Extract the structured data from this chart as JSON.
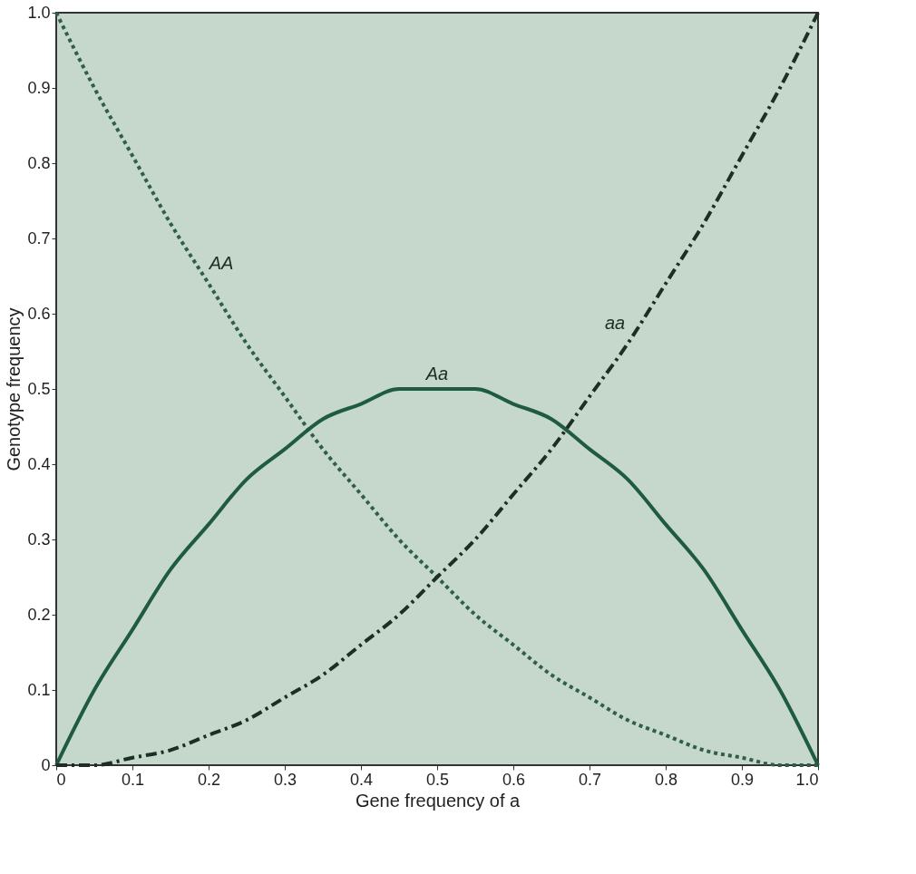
{
  "chart_data": {
    "type": "line",
    "xlabel": "Gene frequency of a",
    "ylabel": "Genotype frequency",
    "x": [
      0,
      0.05,
      0.1,
      0.15,
      0.2,
      0.25,
      0.3,
      0.35,
      0.4,
      0.45,
      0.5,
      0.55,
      0.6,
      0.65,
      0.7,
      0.75,
      0.8,
      0.85,
      0.9,
      0.95,
      1
    ],
    "series": [
      {
        "name": "AA",
        "color": "#2f5e4a",
        "line_style": "dotted",
        "values": [
          1,
          0.9,
          0.81,
          0.72,
          0.64,
          0.56,
          0.49,
          0.42,
          0.36,
          0.3,
          0.25,
          0.2,
          0.16,
          0.12,
          0.09,
          0.06,
          0.04,
          0.02,
          0.01,
          0,
          0
        ]
      },
      {
        "name": "Aa",
        "color": "#1f5a42",
        "line_style": "solid",
        "values": [
          0,
          0.1,
          0.18,
          0.26,
          0.32,
          0.38,
          0.42,
          0.46,
          0.48,
          0.5,
          0.5,
          0.5,
          0.48,
          0.46,
          0.42,
          0.38,
          0.32,
          0.26,
          0.18,
          0.1,
          0
        ]
      },
      {
        "name": "aa",
        "color": "#1c2e25",
        "line_style": "dashed",
        "values": [
          0,
          0,
          0.01,
          0.02,
          0.04,
          0.06,
          0.09,
          0.12,
          0.16,
          0.2,
          0.25,
          0.3,
          0.36,
          0.42,
          0.49,
          0.56,
          0.64,
          0.72,
          0.81,
          0.9,
          1
        ]
      }
    ],
    "xlim": [
      0,
      1
    ],
    "ylim": [
      0,
      1
    ],
    "xticks": [
      0,
      0.1,
      0.2,
      0.3,
      0.4,
      0.5,
      0.6,
      0.7,
      0.8,
      0.9,
      {
        "value": 1,
        "label": "1.0"
      }
    ],
    "yticks": [
      0,
      0.1,
      0.2,
      0.3,
      0.4,
      0.5,
      0.6,
      0.7,
      0.8,
      0.9,
      {
        "value": 1,
        "label": "1.0"
      }
    ],
    "grid": false,
    "marker": "none"
  }
}
